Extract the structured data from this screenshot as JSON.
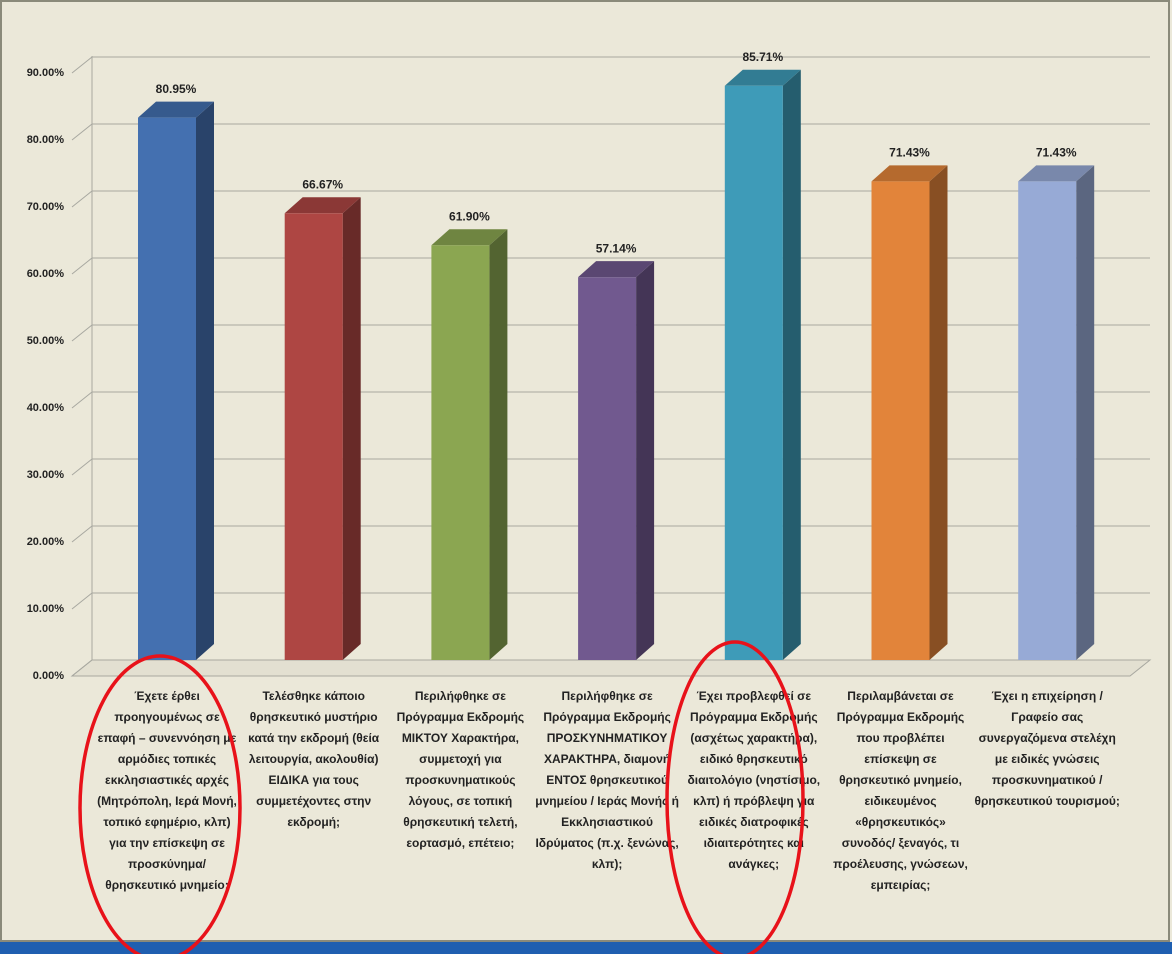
{
  "chart_data": {
    "type": "bar3d",
    "categories": [
      "Έχετε έρθει προηγουμένως σε επαφή – συνεννόηση με αρμόδιες τοπικές εκκλησιαστικές αρχές (Μητρόπολη, Ιερά Μονή, τοπικό εφημέριο, κλπ) για την επίσκεψη σε προσκύνημα/ θρησκευτικό μνημείο;",
      "Τελέσθηκε κάποιο θρησκευτικό μυστήριο κατά την εκδρομή (θεία λειτουργία, ακολουθία) ΕΙΔΙΚΑ για τους συμμετέχοντες στην εκδρομή;",
      "Περιλήφθηκε σε Πρόγραμμα Εκδρομής ΜΙΚΤΟΥ Χαρακτήρα, συμμετοχή για προσκυνηματικούς λόγους, σε τοπική θρησκευτική τελετή, εορτασμό, επέτειο;",
      "Περιλήφθηκε σε Πρόγραμμα Εκδρομής ΠΡΟΣΚΥΝΗΜΑΤΙΚΟΥ ΧΑΡΑΚΤΗΡΑ, διαμονή ΕΝΤΟΣ θρησκευτικού μνημείου / Ιεράς Μονής ή Εκκλησιαστικού Ιδρύματος (π.χ. ξενώνας, κλπ);",
      "Έχει προβλεφθεί σε Πρόγραμμα Εκδρομής (ασχέτως χαρακτήρα), ειδικό θρησκευτικό διαιτολόγιο (νηστίσιμο, κλπ) ή πρόβλεψη για ειδικές διατροφικές ιδιαιτερότητες και ανάγκες;",
      "Περιλαμβάνεται σε Πρόγραμμα Εκδρομής που προβλέπει επίσκεψη σε θρησκευτικό μνημείο, ειδικευμένος «θρησκευτικός» συνοδός/ ξεναγός, τι προέλευσης, γνώσεων, εμπειρίας;",
      "Έχει η επιχείρηση / Γραφείο σας συνεργαζόμενα στελέχη με ειδικές γνώσεις προσκυνηματικού / θρησκευτικού τουρισμού;"
    ],
    "values": [
      80.95,
      66.67,
      61.9,
      57.14,
      85.71,
      71.43,
      71.43
    ],
    "value_labels": [
      "80.95%",
      "66.67%",
      "61.90%",
      "57.14%",
      "85.71%",
      "71.43%",
      "71.43%"
    ],
    "colors": [
      "#4470b0",
      "#ae4643",
      "#8ba651",
      "#71598f",
      "#3e9bb8",
      "#e2843a",
      "#97aad6"
    ],
    "ylim": [
      0,
      90
    ],
    "yticks": [
      {
        "value": 0,
        "label": "0.00%"
      },
      {
        "value": 10,
        "label": "10.00%"
      },
      {
        "value": 20,
        "label": "20.00%"
      },
      {
        "value": 30,
        "label": "30.00%"
      },
      {
        "value": 40,
        "label": "40.00%"
      },
      {
        "value": 50,
        "label": "50.00%"
      },
      {
        "value": 60,
        "label": "60.00%"
      },
      {
        "value": 70,
        "label": "70.00%"
      },
      {
        "value": 80,
        "label": "80.00%"
      },
      {
        "value": 90,
        "label": "90.00%"
      }
    ],
    "grid": true
  }
}
